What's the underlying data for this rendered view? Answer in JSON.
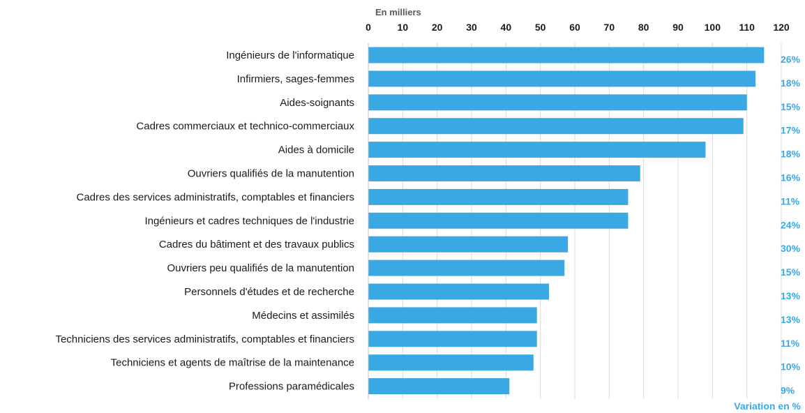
{
  "chart_data": {
    "type": "bar",
    "orientation": "horizontal",
    "unit_label": "En milliers",
    "xlim": [
      0,
      120
    ],
    "ticks": [
      0,
      10,
      20,
      30,
      40,
      50,
      60,
      70,
      80,
      90,
      100,
      110,
      120
    ],
    "grid": true,
    "bar_color": "#3aa9e3",
    "pct_color": "#3aa9e3",
    "categories": [
      "Ingénieurs de l'informatique",
      "Infirmiers, sages-femmes",
      "Aides-soignants",
      "Cadres commerciaux et technico-commerciaux",
      "Aides à domicile",
      "Ouvriers qualifiés de la manutention",
      "Cadres des services administratifs, comptables et financiers",
      "Ingénieurs et cadres techniques de l'industrie",
      "Cadres du bâtiment et des travaux publics",
      "Ouvriers peu qualifiés de la manutention",
      "Personnels d'études et de recherche",
      "Médecins et assimilés",
      "Techniciens des services administratifs, comptables et financiers",
      "Techniciens et agents de maîtrise de la maintenance",
      "Professions paramédicales"
    ],
    "values": [
      115,
      112.5,
      110,
      109,
      98,
      79,
      75.5,
      75.5,
      58,
      57,
      52.5,
      49,
      49,
      48,
      41
    ],
    "variation_labels": [
      "26%",
      "18%",
      "15%",
      "17%",
      "18%",
      "16%",
      "11%",
      "24%",
      "30%",
      "15%",
      "13%",
      "13%",
      "11%",
      "10%",
      "9%"
    ],
    "variation_title": "Variation en %"
  }
}
